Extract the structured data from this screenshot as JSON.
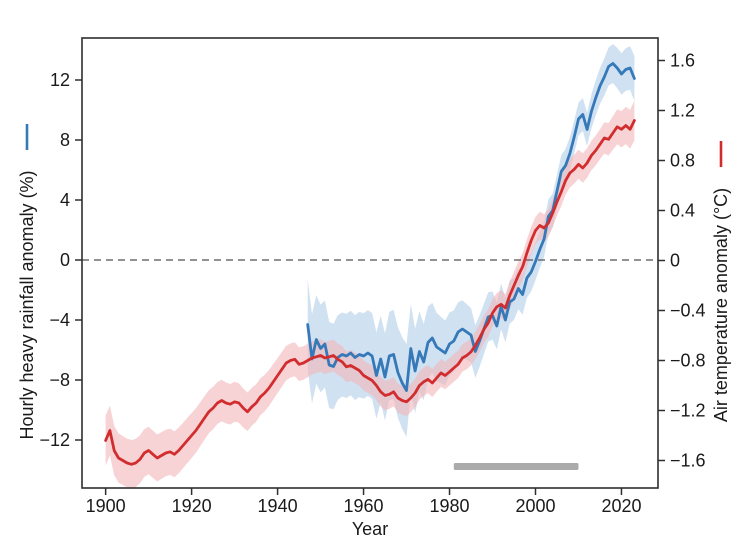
{
  "figure": {
    "background": "#ffffff"
  },
  "axes": {
    "x": {
      "label": "Year",
      "range": [
        1894.5,
        2028.5
      ],
      "ticks": [
        {
          "label": "1900",
          "value": 1900
        },
        {
          "label": "1920",
          "value": 1920
        },
        {
          "label": "1940",
          "value": 1940
        },
        {
          "label": "1960",
          "value": 1960
        },
        {
          "label": "1980",
          "value": 1980
        },
        {
          "label": "2000",
          "value": 2000
        },
        {
          "label": "2020",
          "value": 2020
        }
      ]
    },
    "y_left": {
      "label": "Hourly heavy rainfall anomaly (%)",
      "range": [
        -15.2,
        14.8
      ],
      "legend_dash_color": "#3579b8",
      "ticks": [
        {
          "label": "12",
          "value": 12
        },
        {
          "label": "8",
          "value": 8
        },
        {
          "label": "4",
          "value": 4
        },
        {
          "label": "0",
          "value": 0
        },
        {
          "label": "−4",
          "value": -4
        },
        {
          "label": "−8",
          "value": -8
        },
        {
          "label": "−12",
          "value": -12
        }
      ]
    },
    "y_right": {
      "label": "Air temperature anomaly (°C)",
      "range": [
        -1.82,
        1.78
      ],
      "legend_dash_color": "#d22d2e",
      "ticks": [
        {
          "label": "1.6",
          "value": 1.6
        },
        {
          "label": "1.2",
          "value": 1.2
        },
        {
          "label": "0.8",
          "value": 0.8
        },
        {
          "label": "0.4",
          "value": 0.4
        },
        {
          "label": "0",
          "value": 0
        },
        {
          "label": "−0.4",
          "value": -0.4
        },
        {
          "label": "−0.8",
          "value": -0.8
        },
        {
          "label": "−1.2",
          "value": -1.2
        },
        {
          "label": "−1.6",
          "value": -1.6
        }
      ]
    }
  },
  "chart_data": {
    "type": "line",
    "grid": false,
    "zero_line": {
      "value": 0,
      "style": "dashed",
      "color": "#6e6e6e"
    },
    "reference_bar": {
      "from_year": 1981,
      "to_year": 2010,
      "color": "#ababab"
    },
    "frame_color": "#2f2f2f",
    "series": [
      {
        "name": "hourly-heavy-rainfall-anomaly",
        "axis": "left",
        "unit": "%",
        "color": "#3579b8",
        "band_color": "#a9c9e6",
        "band_opacity": 0.55,
        "start_year": 1947,
        "annual_step": 1,
        "values": [
          -4.3,
          -6.6,
          -5.3,
          -5.9,
          -5.6,
          -7.0,
          -7.1,
          -6.5,
          -6.3,
          -6.4,
          -6.2,
          -6.5,
          -6.3,
          -6.4,
          -6.2,
          -6.4,
          -7.7,
          -6.6,
          -7.8,
          -6.4,
          -6.3,
          -7.5,
          -8.2,
          -8.7,
          -5.9,
          -7.4,
          -6.1,
          -6.8,
          -5.5,
          -5.2,
          -5.8,
          -6.0,
          -6.2,
          -5.6,
          -5.4,
          -4.8,
          -4.6,
          -4.8,
          -5.0,
          -6.1,
          -5.4,
          -4.6,
          -3.8,
          -3.7,
          -4.4,
          -3.1,
          -4.0,
          -2.8,
          -2.6,
          -1.9,
          -2.3,
          -1.2,
          -0.8,
          -0.1,
          0.7,
          1.4,
          2.9,
          3.3,
          4.6,
          5.9,
          6.3,
          7.1,
          8.2,
          9.4,
          9.7,
          8.7,
          9.9,
          10.8,
          11.6,
          12.2,
          12.9,
          13.1,
          12.8,
          12.4,
          12.7,
          12.8,
          12.1
        ],
        "band_halfwidth_keypoints": [
          [
            1947,
            3.0
          ],
          [
            1955,
            2.8
          ],
          [
            1965,
            2.9
          ],
          [
            1970,
            3.1
          ],
          [
            1975,
            2.4
          ],
          [
            1985,
            1.8
          ],
          [
            1995,
            1.4
          ],
          [
            2005,
            1.1
          ],
          [
            2012,
            1.1
          ],
          [
            2018,
            1.3
          ],
          [
            2023,
            1.5
          ]
        ]
      },
      {
        "name": "air-temperature-anomaly",
        "axis": "right",
        "unit": "°C",
        "color": "#d22d2e",
        "band_color": "#f3b5ba",
        "band_opacity": 0.6,
        "start_year": 1900,
        "annual_step": 1,
        "values": [
          -1.44,
          -1.36,
          -1.52,
          -1.58,
          -1.6,
          -1.62,
          -1.63,
          -1.62,
          -1.59,
          -1.54,
          -1.52,
          -1.55,
          -1.58,
          -1.56,
          -1.54,
          -1.53,
          -1.55,
          -1.52,
          -1.48,
          -1.44,
          -1.4,
          -1.36,
          -1.31,
          -1.26,
          -1.21,
          -1.18,
          -1.14,
          -1.12,
          -1.14,
          -1.15,
          -1.13,
          -1.14,
          -1.18,
          -1.21,
          -1.17,
          -1.14,
          -1.09,
          -1.06,
          -1.02,
          -0.97,
          -0.92,
          -0.87,
          -0.82,
          -0.8,
          -0.79,
          -0.83,
          -0.82,
          -0.8,
          -0.78,
          -0.77,
          -0.76,
          -0.78,
          -0.77,
          -0.76,
          -0.79,
          -0.81,
          -0.85,
          -0.84,
          -0.86,
          -0.88,
          -0.92,
          -0.94,
          -0.96,
          -1.0,
          -1.05,
          -1.08,
          -1.07,
          -1.05,
          -1.1,
          -1.12,
          -1.13,
          -1.1,
          -1.06,
          -1.0,
          -0.97,
          -0.95,
          -0.98,
          -0.94,
          -0.9,
          -0.92,
          -0.89,
          -0.86,
          -0.83,
          -0.78,
          -0.76,
          -0.73,
          -0.68,
          -0.62,
          -0.55,
          -0.5,
          -0.42,
          -0.37,
          -0.35,
          -0.38,
          -0.28,
          -0.2,
          -0.12,
          -0.05,
          0.06,
          0.16,
          0.24,
          0.28,
          0.26,
          0.3,
          0.38,
          0.47,
          0.55,
          0.64,
          0.7,
          0.73,
          0.77,
          0.74,
          0.78,
          0.84,
          0.88,
          0.93,
          0.98,
          0.97,
          1.02,
          1.07,
          1.05,
          1.08,
          1.05,
          1.12
        ],
        "band_halfwidth_keypoints": [
          [
            1900,
            0.2
          ],
          [
            1920,
            0.18
          ],
          [
            1940,
            0.14
          ],
          [
            1960,
            0.12
          ],
          [
            1980,
            0.11
          ],
          [
            2000,
            0.11
          ],
          [
            2015,
            0.12
          ],
          [
            2023,
            0.16
          ]
        ]
      }
    ]
  }
}
